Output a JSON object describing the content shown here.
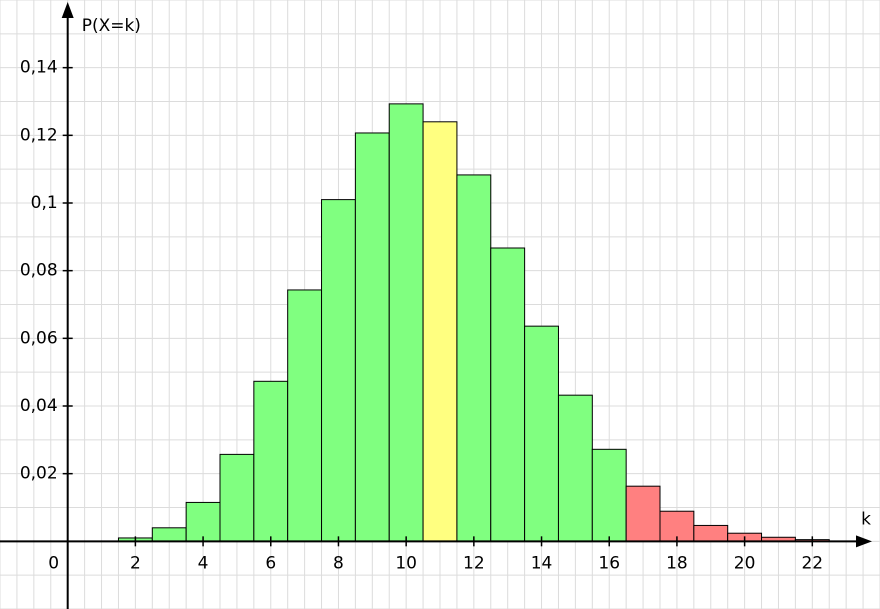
{
  "chart_data": {
    "type": "bar",
    "x_label": "k",
    "y_label": "P(X=k)",
    "x": [
      2,
      3,
      4,
      5,
      6,
      7,
      8,
      9,
      10,
      11,
      12,
      13,
      14,
      15,
      16,
      17,
      18,
      19,
      20,
      21,
      22
    ],
    "values": [
      0.001,
      0.004,
      0.0115,
      0.0257,
      0.0473,
      0.0743,
      0.101,
      0.1207,
      0.1293,
      0.124,
      0.1083,
      0.0867,
      0.0636,
      0.0432,
      0.0272,
      0.0163,
      0.0089,
      0.0047,
      0.0024,
      0.0012,
      0.0005
    ],
    "colors": [
      "#80ff80",
      "#80ff80",
      "#80ff80",
      "#80ff80",
      "#80ff80",
      "#80ff80",
      "#80ff80",
      "#80ff80",
      "#80ff80",
      "#ffff80",
      "#80ff80",
      "#80ff80",
      "#80ff80",
      "#80ff80",
      "#80ff80",
      "#ff8080",
      "#ff8080",
      "#ff8080",
      "#ff8080",
      "#ff8080",
      "#ff8080"
    ],
    "xlim": [
      -2,
      24
    ],
    "ylim": [
      -0.02,
      0.16
    ],
    "xticks": [
      0,
      2,
      4,
      6,
      8,
      10,
      12,
      14,
      16,
      18,
      20,
      22
    ],
    "yticks": [
      {
        "value": 0.02,
        "label": "0,02"
      },
      {
        "value": 0.04,
        "label": "0,04"
      },
      {
        "value": 0.06,
        "label": "0,06"
      },
      {
        "value": 0.08,
        "label": "0,08"
      },
      {
        "value": 0.1,
        "label": "0,1"
      },
      {
        "value": 0.12,
        "label": "0,12"
      },
      {
        "value": 0.14,
        "label": "0,14"
      }
    ],
    "grid": true
  }
}
